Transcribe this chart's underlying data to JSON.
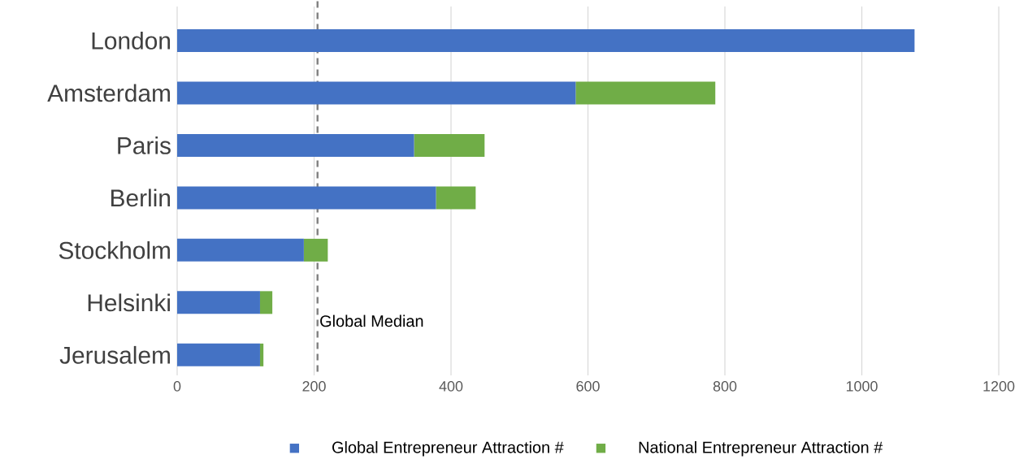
{
  "chart_data": {
    "type": "bar",
    "orientation": "horizontal",
    "stacked": true,
    "categories": [
      "London",
      "Amsterdam",
      "Paris",
      "Berlin",
      "Stockholm",
      "Helsinki",
      "Jerusalem"
    ],
    "series": [
      {
        "name": "Global Entrepreneur Attraction #",
        "color": "#4472c4",
        "values": [
          1077,
          582,
          346,
          378,
          185,
          121,
          121
        ]
      },
      {
        "name": "National Entrepreneur Attraction #",
        "color": "#70ad47",
        "values": [
          null,
          204,
          103,
          58,
          35,
          18,
          5
        ]
      }
    ],
    "xlim": [
      0,
      1200
    ],
    "xticks": [
      0,
      200,
      400,
      600,
      800,
      1000,
      1200
    ],
    "grid": "x",
    "legend": "bottom",
    "ref_lines": [
      {
        "axis": "x",
        "value": 205,
        "label": "Global Median",
        "color": "#7f7f7f",
        "line_style": "dashed"
      }
    ]
  }
}
